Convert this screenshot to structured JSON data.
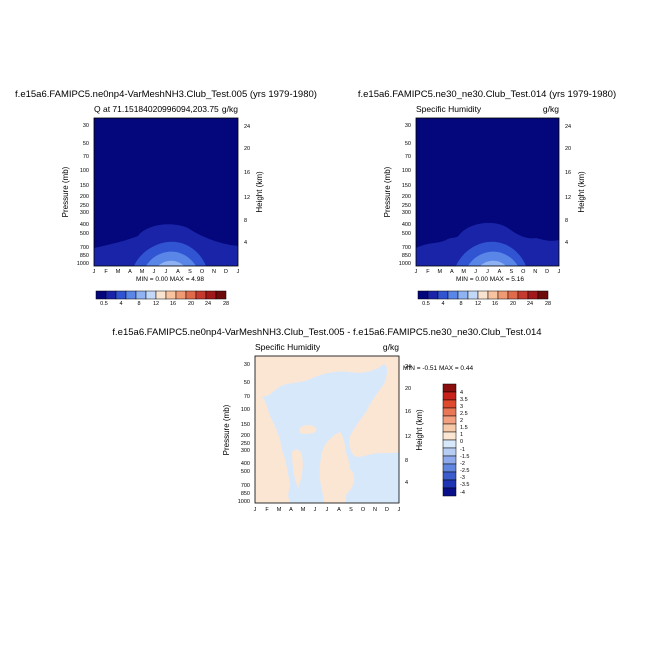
{
  "colors": {
    "sequential": [
      "#04077b",
      "#1924a8",
      "#3154d2",
      "#5a86e8",
      "#8eb2f2",
      "#c2d8f8",
      "#f7e3d0",
      "#f8c4a0",
      "#f09a74",
      "#e06b4b",
      "#c53a2f",
      "#a0181a",
      "#6e0a0a"
    ],
    "diverging": [
      "#0a0f8a",
      "#1f35b4",
      "#3a5ccd",
      "#6086e0",
      "#8ea9ec",
      "#b7cdf4",
      "#d8e8fb",
      "#fbe6d4",
      "#f6c9a8",
      "#f2a07f",
      "#e97654",
      "#df4a2f",
      "#c8201a",
      "#8a0e0e"
    ]
  },
  "chart_data": [
    {
      "type": "heatmap",
      "title": "f.e15a6.FAMIPC5.ne0np4-VarMeshNH3.Club_Test.005 (yrs 1979-1980)",
      "left_string": "Q at 71.15184020996094,203.75",
      "units": "g/kg",
      "ylabel": "Pressure (mb)",
      "ylabel_right": "Height (km)",
      "x_ticks": [
        "J",
        "F",
        "M",
        "A",
        "M",
        "J",
        "J",
        "A",
        "S",
        "O",
        "N",
        "D",
        "J"
      ],
      "y_ticks": [
        "30",
        "50",
        "70",
        "100",
        "150",
        "200",
        "250",
        "300",
        "400",
        "500",
        "700",
        "850",
        "1000"
      ],
      "y_ticks_right": [
        "24",
        "20",
        "16",
        "12",
        "8",
        "4"
      ],
      "min_max": "MIN =   0.00 MAX =   4.98",
      "min": 0.0,
      "max": 4.98,
      "colorbar_labels": [
        "0.5",
        "4",
        "8",
        "12",
        "16",
        "20",
        "24",
        "28"
      ]
    },
    {
      "type": "heatmap",
      "title": "f.e15a6.FAMIPC5.ne30_ne30.Club_Test.014 (yrs 1979-1980)",
      "left_string": "Specific Humidity",
      "units": "g/kg",
      "ylabel": "Pressure (mb)",
      "ylabel_right": "Height (km)",
      "x_ticks": [
        "J",
        "F",
        "M",
        "A",
        "M",
        "J",
        "J",
        "A",
        "S",
        "O",
        "N",
        "D",
        "J"
      ],
      "y_ticks": [
        "30",
        "50",
        "70",
        "100",
        "150",
        "200",
        "250",
        "300",
        "400",
        "500",
        "700",
        "850",
        "1000"
      ],
      "y_ticks_right": [
        "24",
        "20",
        "16",
        "12",
        "8",
        "4"
      ],
      "min_max": "MIN =   0.00 MAX =   5.16",
      "min": 0.0,
      "max": 5.16,
      "colorbar_labels": [
        "0.5",
        "4",
        "8",
        "12",
        "16",
        "20",
        "24",
        "28"
      ]
    },
    {
      "type": "heatmap",
      "title": "f.e15a6.FAMIPC5.ne0np4-VarMeshNH3.Club_Test.005 - f.e15a6.FAMIPC5.ne30_ne30.Club_Test.014",
      "left_string": "Specific Humidity",
      "units": "g/kg",
      "ylabel": "Pressure (mb)",
      "ylabel_right": "Height (km)",
      "x_ticks": [
        "J",
        "F",
        "M",
        "A",
        "M",
        "J",
        "J",
        "A",
        "S",
        "O",
        "N",
        "D",
        "J"
      ],
      "y_ticks": [
        "30",
        "50",
        "70",
        "100",
        "150",
        "200",
        "250",
        "300",
        "400",
        "500",
        "700",
        "850",
        "1000"
      ],
      "y_ticks_right": [
        "24",
        "20",
        "16",
        "12",
        "8",
        "4"
      ],
      "min_max": "MIN =  -0.51 MAX =   0.44",
      "min": -0.51,
      "max": 0.44,
      "colorbar_labels": [
        "4",
        "3.5",
        "3",
        "2.5",
        "2",
        "1.5",
        "1",
        "0",
        "-1",
        "-1.5",
        "-2",
        "-2.5",
        "-3",
        "-3.5",
        "-4"
      ]
    }
  ]
}
